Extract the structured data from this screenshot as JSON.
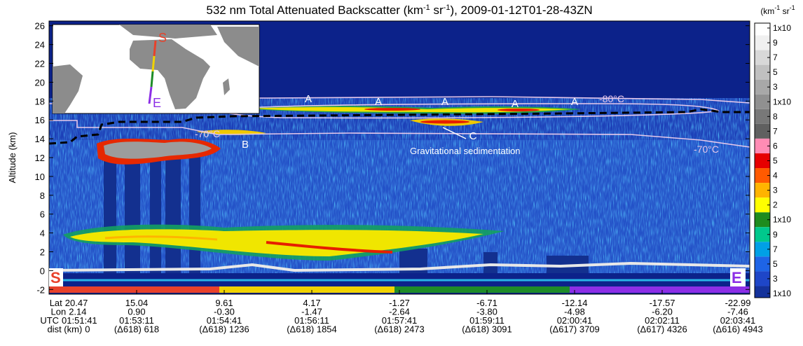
{
  "chart_data": {
    "type": "curtain",
    "title": [
      {
        "text": "532 nm Total Attenuated Backscatter (km"
      },
      {
        "text": "-1",
        "sup": true
      },
      {
        "text": " sr"
      },
      {
        "text": "-1",
        "sup": true
      },
      {
        "text": "), 2009-01-12T01-28-43ZN"
      }
    ],
    "y_label": "Altitude (km)",
    "ylim": [
      -2.5,
      26.5
    ],
    "yticks": [
      -2,
      0,
      2,
      4,
      6,
      8,
      10,
      12,
      14,
      16,
      18,
      20,
      22,
      24,
      26
    ],
    "x_labels": [
      {
        "name": "Lat",
        "values": [
          "20.47",
          "15.04",
          "9.61",
          "4.17",
          "-1.27",
          "-6.71",
          "-12.14",
          "-17.57",
          "-22.99"
        ]
      },
      {
        "name": "Lon",
        "values": [
          "2.14",
          "0.90",
          "-0.30",
          "-1.47",
          "-2.64",
          "-3.80",
          "-4.98",
          "-6.20",
          "-7.46"
        ]
      },
      {
        "name": "UTC",
        "values": [
          "01:51:41",
          "01:53:11",
          "01:54:41",
          "01:56:11",
          "01:57:41",
          "01:59:11",
          "02:00:41",
          "02:02:11",
          "02:03:41"
        ]
      },
      {
        "name": "dist (km)",
        "values": [
          "0",
          "(Δ618) 618",
          "(Δ618) 1236",
          "(Δ618) 1854",
          "(Δ618) 2473",
          "(Δ618) 3091",
          "(Δ617) 3709",
          "(Δ617) 4326",
          "(Δ616) 4943"
        ]
      }
    ],
    "annotations": [
      "A",
      "A",
      "A",
      "A",
      "A",
      "B",
      "C",
      "-80°C",
      "-70°C",
      "-70°C",
      "Gravitational sedimentation",
      "S",
      "E"
    ],
    "colorbar": {
      "title": [
        {
          "text": "(km"
        },
        {
          "text": "-1",
          "sup": true
        },
        {
          "text": " sr"
        },
        {
          "text": "-1",
          "sup": true
        }
      ],
      "levels": [
        {
          "label": "1x10",
          "color": "#ffffff"
        },
        {
          "label": "9",
          "color": "#f0f0f0"
        },
        {
          "label": "7",
          "color": "#d8d8d8"
        },
        {
          "label": "5",
          "color": "#c0c0c0"
        },
        {
          "label": "3",
          "color": "#a8a8a8"
        },
        {
          "label": "1x10",
          "color": "#909090"
        },
        {
          "label": "8",
          "color": "#787878"
        },
        {
          "label": "7",
          "color": "#606060"
        },
        {
          "label": "6",
          "color": "#ff8cb4"
        },
        {
          "label": "5",
          "color": "#e60000"
        },
        {
          "label": "4",
          "color": "#ff5a00"
        },
        {
          "label": "3",
          "color": "#ffb400"
        },
        {
          "label": "2",
          "color": "#ffff00"
        },
        {
          "label": "1x10",
          "color": "#1e8c1e"
        },
        {
          "label": "9",
          "color": "#00c88c"
        },
        {
          "label": "7",
          "color": "#00a0e6"
        },
        {
          "label": "5",
          "color": "#1e64e6"
        },
        {
          "label": "3",
          "color": "#1e46c8"
        },
        {
          "label": "1x10",
          "color": "#14329b"
        }
      ]
    }
  }
}
